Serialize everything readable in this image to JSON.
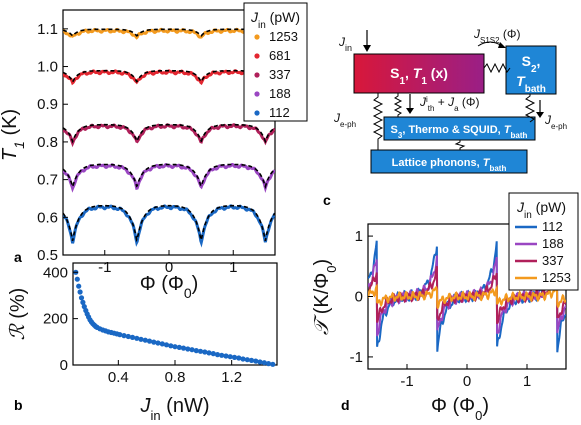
{
  "panel_labels": {
    "a": "a",
    "b": "b",
    "c": "c",
    "d": "d"
  },
  "chart_data": [
    {
      "id": "a",
      "type": "line",
      "xlabel": "Φ (Φ0)",
      "ylabel": "T1 (K)",
      "xlim": [
        -1.65,
        1.65
      ],
      "ylim": [
        0.5,
        1.15
      ],
      "xticks": [
        -1,
        0,
        1
      ],
      "xtick_labels": [
        "-1",
        "0",
        "1"
      ],
      "yticks": [
        0.5,
        0.6,
        0.7,
        0.8,
        0.9,
        1.0,
        1.1
      ],
      "ytick_labels": [
        "0.5",
        "0.6",
        "0.7",
        "0.8",
        "0.9",
        "1.0",
        "1.1"
      ],
      "legend_title": "Jin (pW)",
      "legend_position": "top-right",
      "series": [
        {
          "name": "1253",
          "color": "#f39a1e",
          "base": 1.095,
          "depth": 0.018,
          "width": 0.1
        },
        {
          "name": "681",
          "color": "#e32630",
          "base": 0.985,
          "depth": 0.03,
          "width": 0.1
        },
        {
          "name": "337",
          "color": "#b0205a",
          "base": 0.842,
          "depth": 0.045,
          "width": 0.11
        },
        {
          "name": "188",
          "color": "#9a46c2",
          "base": 0.737,
          "depth": 0.06,
          "width": 0.12
        },
        {
          "name": "112",
          "color": "#1a68c4",
          "base": 0.628,
          "depth": 0.095,
          "width": 0.12
        }
      ],
      "fit_style": "black dashed"
    },
    {
      "id": "b",
      "type": "scatter",
      "xlabel": "Jin (nW)",
      "ylabel": "R (%)",
      "xlim": [
        0.08,
        1.52
      ],
      "ylim": [
        0,
        440
      ],
      "xticks": [
        0.4,
        0.8,
        1.2
      ],
      "xtick_labels": [
        "0.4",
        "0.8",
        "1.2"
      ],
      "yticks": [
        0,
        200,
        400
      ],
      "ytick_labels": [
        "0",
        "200",
        "400"
      ],
      "color": "#1a68c4",
      "x": [
        0.1,
        0.11,
        0.12,
        0.13,
        0.14,
        0.15,
        0.16,
        0.17,
        0.18,
        0.19,
        0.2,
        0.21,
        0.22,
        0.23,
        0.24,
        0.25,
        0.27,
        0.29,
        0.31,
        0.33,
        0.35,
        0.37,
        0.39,
        0.41,
        0.44,
        0.47,
        0.5,
        0.53,
        0.56,
        0.59,
        0.62,
        0.65,
        0.68,
        0.71,
        0.74,
        0.77,
        0.8,
        0.83,
        0.86,
        0.89,
        0.92,
        0.95,
        0.98,
        1.01,
        1.04,
        1.07,
        1.1,
        1.13,
        1.16,
        1.19,
        1.22,
        1.25,
        1.28,
        1.31,
        1.34,
        1.37,
        1.4,
        1.43,
        1.46,
        1.49
      ],
      "y": [
        400,
        370,
        340,
        315,
        290,
        270,
        252,
        235,
        220,
        207,
        195,
        186,
        178,
        172,
        166,
        162,
        156,
        151,
        147,
        143,
        140,
        137,
        134,
        131,
        127,
        123,
        119,
        115,
        111,
        107,
        103,
        99,
        95,
        91,
        87,
        83,
        79,
        76,
        73,
        69,
        66,
        62,
        59,
        56,
        52,
        49,
        45,
        42,
        39,
        36,
        33,
        30,
        26,
        23,
        20,
        17,
        13,
        10,
        6,
        3
      ]
    },
    {
      "id": "d",
      "type": "line",
      "xlabel": "Φ (Φ0)",
      "ylabel": "T (K/Φ0)",
      "xlim": [
        -1.65,
        1.65
      ],
      "ylim": [
        -1.2,
        1.2
      ],
      "xticks": [
        -1,
        0,
        1
      ],
      "xtick_labels": [
        "-1",
        "0",
        "1"
      ],
      "yticks": [
        -1,
        0,
        1
      ],
      "ytick_labels": [
        "-1",
        "0",
        "1"
      ],
      "legend_title": "Jin (pW)",
      "legend_position": "top-right",
      "series": [
        {
          "name": "112",
          "color": "#1a68c4",
          "amp": 0.7
        },
        {
          "name": "188",
          "color": "#9a46c2",
          "amp": 0.5
        },
        {
          "name": "337",
          "color": "#b0205a",
          "amp": 0.33
        },
        {
          "name": "1253",
          "color": "#f39a1e",
          "amp": 0.1
        }
      ]
    }
  ],
  "diagram": {
    "jin_label": "Jin",
    "s1_label": "S1, T1 (x)",
    "s2_label": "S2, Tbath",
    "s1s2_label": "JS1S2 (Φ)",
    "eph_left": "Je-ph",
    "eph_right": "Je-ph",
    "center_label": "J ith + Ja (Φ)",
    "s3_label": "S3, Thermo & SQUID, Tbath",
    "lattice_label": "Lattice phonons, Tbath",
    "colors": {
      "s1_left": "#d8173a",
      "s1_right": "#9a1f86",
      "s2": "#1f86d6",
      "s3": "#1f86d6",
      "lattice": "#1f86d6"
    }
  }
}
